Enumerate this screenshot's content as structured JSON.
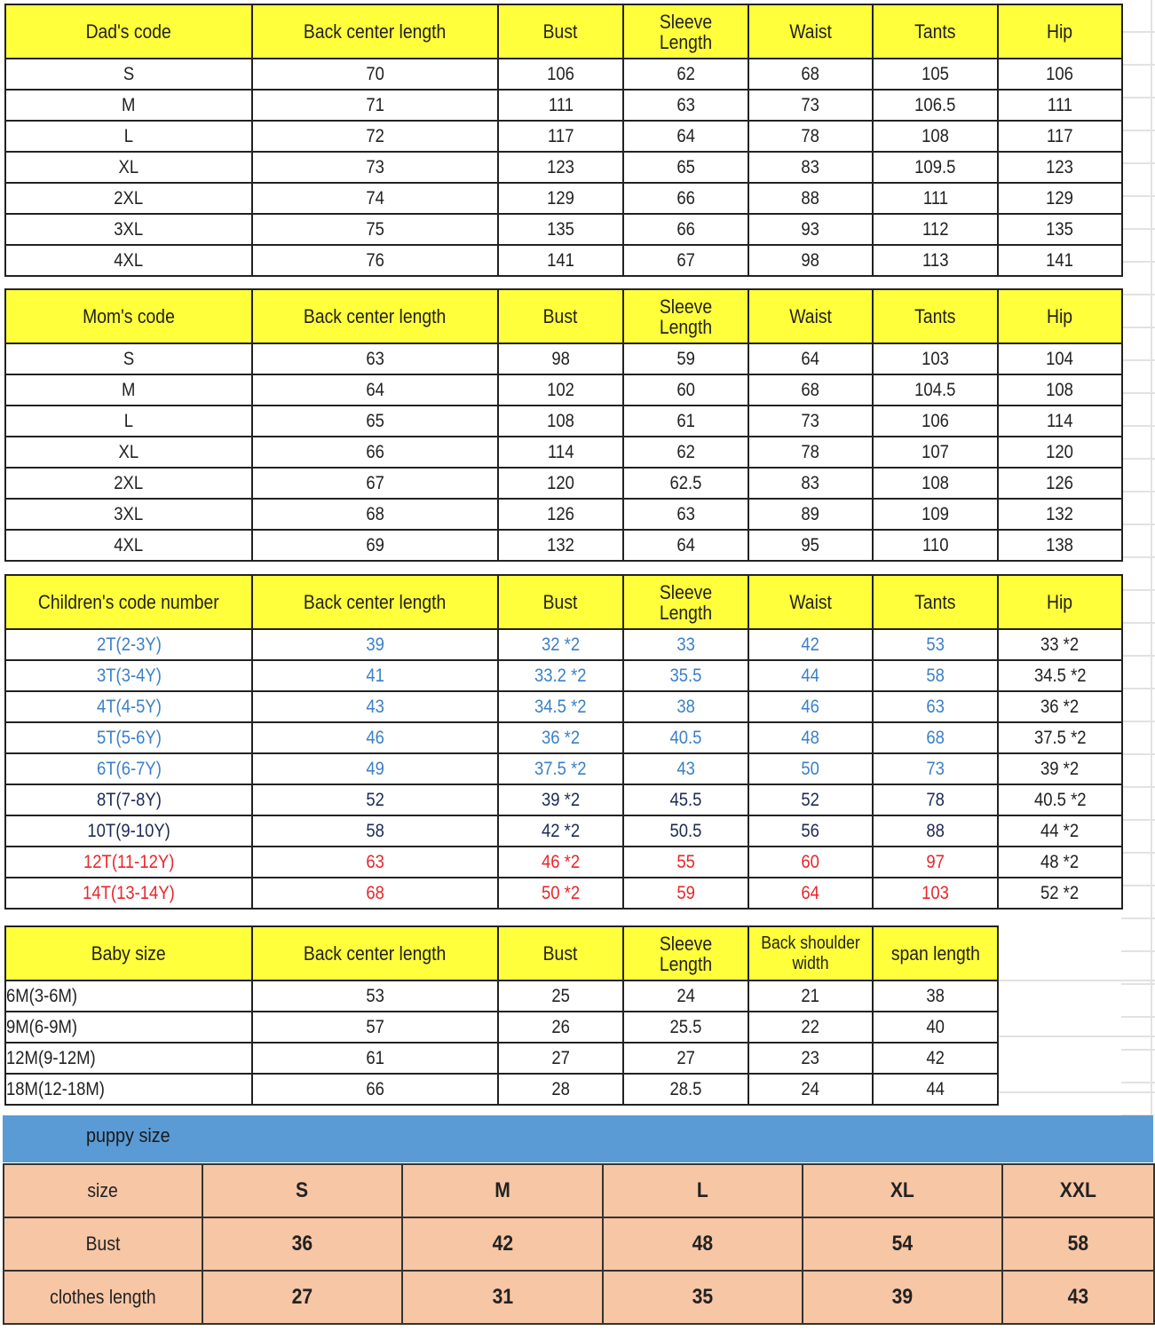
{
  "colors": {
    "header": "#ffff3b",
    "puppy_band": "#5b9bd5",
    "puppy_table": "#f7c6a5",
    "blue": "#3b80c6",
    "navy": "#1f2a55",
    "red": "#e8262b"
  },
  "sections": [
    {
      "id": "dad",
      "headers": [
        "Dad's code",
        "Back center length",
        "Bust",
        "Sleeve Length",
        "Waist",
        "Tants",
        "Hip"
      ],
      "rows": [
        {
          "cells": [
            "S",
            "70",
            "106",
            "62",
            "68",
            "105",
            "106"
          ]
        },
        {
          "cells": [
            "M",
            "71",
            "111",
            "63",
            "73",
            "106.5",
            "111"
          ]
        },
        {
          "cells": [
            "L",
            "72",
            "117",
            "64",
            "78",
            "108",
            "117"
          ]
        },
        {
          "cells": [
            "XL",
            "73",
            "123",
            "65",
            "83",
            "109.5",
            "123"
          ]
        },
        {
          "cells": [
            "2XL",
            "74",
            "129",
            "66",
            "88",
            "111",
            "129"
          ]
        },
        {
          "cells": [
            "3XL",
            "75",
            "135",
            "66",
            "93",
            "112",
            "135"
          ]
        },
        {
          "cells": [
            "4XL",
            "76",
            "141",
            "67",
            "98",
            "113",
            "141"
          ]
        }
      ]
    },
    {
      "id": "mom",
      "headers": [
        "Mom's code",
        "Back center length",
        "Bust",
        "Sleeve Length",
        "Waist",
        "Tants",
        "Hip"
      ],
      "rows": [
        {
          "cells": [
            "S",
            "63",
            "98",
            "59",
            "64",
            "103",
            "104"
          ]
        },
        {
          "cells": [
            "M",
            "64",
            "102",
            "60",
            "68",
            "104.5",
            "108"
          ]
        },
        {
          "cells": [
            "L",
            "65",
            "108",
            "61",
            "73",
            "106",
            "114"
          ]
        },
        {
          "cells": [
            "XL",
            "66",
            "114",
            "62",
            "78",
            "107",
            "120"
          ]
        },
        {
          "cells": [
            "2XL",
            "67",
            "120",
            "62.5",
            "83",
            "108",
            "126"
          ]
        },
        {
          "cells": [
            "3XL",
            "68",
            "126",
            "63",
            "89",
            "109",
            "132"
          ]
        },
        {
          "cells": [
            "4XL",
            "69",
            "132",
            "64",
            "95",
            "110",
            "138"
          ]
        }
      ]
    },
    {
      "id": "children",
      "headers": [
        "Children's code number",
        "Back center length",
        "Bust",
        "Sleeve Length",
        "Waist",
        "Tants",
        "Hip"
      ],
      "rows": [
        {
          "color": "blue",
          "cells": [
            "2T(2-3Y)",
            "39",
            "32 *2",
            "33",
            "42",
            "53",
            "33 *2"
          ]
        },
        {
          "color": "blue",
          "cells": [
            "3T(3-4Y)",
            "41",
            "33.2 *2",
            "35.5",
            "44",
            "58",
            "34.5 *2"
          ]
        },
        {
          "color": "blue",
          "cells": [
            "4T(4-5Y)",
            "43",
            "34.5 *2",
            "38",
            "46",
            "63",
            "36 *2"
          ]
        },
        {
          "color": "blue",
          "cells": [
            "5T(5-6Y)",
            "46",
            "36 *2",
            "40.5",
            "48",
            "68",
            "37.5 *2"
          ]
        },
        {
          "color": "blue",
          "cells": [
            "6T(6-7Y)",
            "49",
            "37.5 *2",
            "43",
            "50",
            "73",
            "39 *2"
          ]
        },
        {
          "color": "navy",
          "cells": [
            "8T(7-8Y)",
            "52",
            "39 *2",
            "45.5",
            "52",
            "78",
            "40.5 *2"
          ]
        },
        {
          "color": "navy",
          "cells": [
            "10T(9-10Y)",
            "58",
            "42 *2",
            "50.5",
            "56",
            "88",
            "44 *2"
          ]
        },
        {
          "color": "red",
          "cells": [
            "12T(11-12Y)",
            "63",
            "46 *2",
            "55",
            "60",
            "97",
            "48 *2"
          ]
        },
        {
          "color": "red",
          "cells": [
            "14T(13-14Y)",
            "68",
            "50 *2",
            "59",
            "64",
            "103",
            "52 *2"
          ]
        }
      ]
    },
    {
      "id": "baby",
      "headers": [
        "Baby size",
        "Back center length",
        "Bust",
        "Sleeve Length",
        "Back shoulder width",
        "span length"
      ],
      "rows": [
        {
          "cells": [
            "6M(3-6M)",
            "53",
            "25",
            "24",
            "21",
            "38"
          ]
        },
        {
          "cells": [
            "9M(6-9M)",
            "57",
            "26",
            "25.5",
            "22",
            "40"
          ]
        },
        {
          "cells": [
            "12M(9-12M)",
            "61",
            "27",
            "27",
            "23",
            "42"
          ]
        },
        {
          "cells": [
            "18M(12-18M)",
            "66",
            "28",
            "28.5",
            "24",
            "44"
          ]
        }
      ]
    }
  ],
  "puppy": {
    "title": "puppy size",
    "rows": [
      [
        "size",
        "S",
        "M",
        "L",
        "XL",
        "XXL"
      ],
      [
        "Bust",
        "36",
        "42",
        "48",
        "54",
        "58"
      ],
      [
        "clothes length",
        "27",
        "31",
        "35",
        "39",
        "43"
      ]
    ]
  }
}
